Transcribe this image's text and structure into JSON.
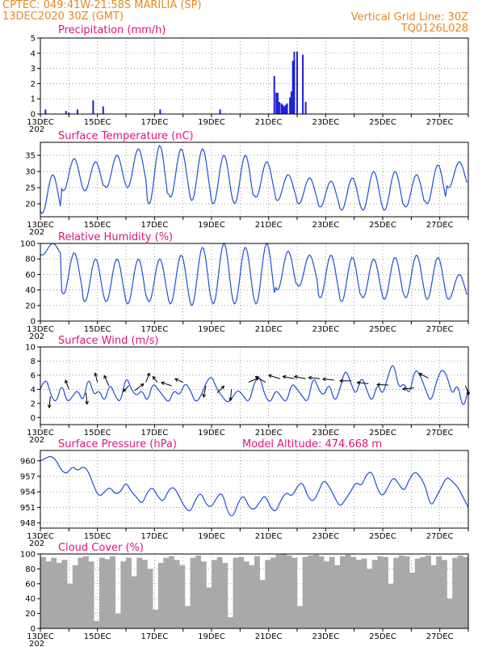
{
  "header": {
    "line1": "CPTEC:   049:41W-21:58S   MARILIA (SP)",
    "line2": "13DEC2020 30Z (GMT)",
    "right1": "Vertical Grid Line: 30Z",
    "right2": "TQ0126L028"
  },
  "x_axis": {
    "labels": [
      "13DEC",
      "15DEC",
      "17DEC",
      "19DEC",
      "21DEC",
      "23DEC",
      "25DEC",
      "27DEC"
    ],
    "year_stub": "202"
  },
  "chart_data": [
    {
      "id": "precip",
      "type": "bar",
      "title": "Precipitation (mm/h)",
      "ylim": [
        0,
        5
      ],
      "yticks": [
        0,
        1,
        2,
        3,
        4,
        5
      ],
      "color": "#1f1fd6",
      "x": [
        0.18,
        0.9,
        1.0,
        1.3,
        1.85,
        2.2,
        4.2,
        6.3,
        8.2,
        8.27,
        8.32,
        8.38,
        8.45,
        8.5,
        8.55,
        8.6,
        8.65,
        8.75,
        8.8,
        8.85,
        8.9,
        9.0,
        9.2,
        9.3
      ],
      "values": [
        0.3,
        0.2,
        0.1,
        0.3,
        0.9,
        0.5,
        0.3,
        0.3,
        2.5,
        1.4,
        1.4,
        0.8,
        0.7,
        0.6,
        0.5,
        0.6,
        0.7,
        1.1,
        1.5,
        3.5,
        4.1,
        4.1,
        3.9,
        0.8
      ]
    },
    {
      "id": "temp",
      "type": "line",
      "title": "Surface Temperature (nC)",
      "ylim": [
        16,
        39
      ],
      "yticks": [
        20,
        25,
        30,
        35
      ],
      "color": "#1f4fd6",
      "days": [
        [
          17,
          29
        ],
        [
          24,
          34
        ],
        [
          24,
          33
        ],
        [
          25,
          35
        ],
        [
          25,
          37
        ],
        [
          20,
          38
        ],
        [
          22,
          37
        ],
        [
          21,
          37
        ],
        [
          20,
          35
        ],
        [
          20,
          35
        ],
        [
          22,
          33
        ],
        [
          21,
          29
        ],
        [
          20,
          28
        ],
        [
          19,
          27
        ],
        [
          18,
          28
        ],
        [
          18,
          30
        ],
        [
          18,
          30
        ],
        [
          19,
          29
        ],
        [
          20,
          32
        ],
        [
          25,
          33
        ]
      ]
    },
    {
      "id": "rh",
      "type": "line",
      "title": "Relative Humidity (%)",
      "ylim": [
        0,
        100
      ],
      "yticks": [
        0,
        20,
        40,
        60,
        80,
        100
      ],
      "color": "#1f4fd6",
      "days": [
        [
          85,
          100
        ],
        [
          35,
          88
        ],
        [
          25,
          80
        ],
        [
          25,
          80
        ],
        [
          22,
          80
        ],
        [
          25,
          80
        ],
        [
          22,
          85
        ],
        [
          20,
          95
        ],
        [
          22,
          100
        ],
        [
          22,
          95
        ],
        [
          22,
          100
        ],
        [
          40,
          90
        ],
        [
          45,
          85
        ],
        [
          30,
          85
        ],
        [
          25,
          82
        ],
        [
          30,
          80
        ],
        [
          28,
          82
        ],
        [
          30,
          85
        ],
        [
          28,
          82
        ],
        [
          28,
          60
        ]
      ]
    },
    {
      "id": "wind",
      "type": "line",
      "title": "Surface Wind (m/s)",
      "ylim": [
        -1,
        10
      ],
      "yticks": [
        0,
        2,
        4,
        6,
        8,
        10
      ],
      "color": "#1f4fd6",
      "values": [
        4,
        6,
        3,
        2,
        5,
        2,
        3,
        4,
        2,
        6,
        3,
        4,
        2,
        5,
        3,
        2,
        6,
        4,
        3,
        4,
        2,
        5,
        4,
        3,
        2,
        4,
        3,
        5,
        4,
        2,
        3,
        5,
        6,
        4,
        3,
        2,
        3,
        4,
        3,
        2,
        5,
        6,
        3,
        2,
        4,
        3,
        2,
        5,
        4,
        3,
        2,
        6,
        4,
        3,
        5,
        2,
        4,
        7,
        5,
        3,
        6,
        4,
        2,
        5,
        3,
        6,
        8,
        4,
        5,
        3,
        7,
        6,
        4,
        2,
        5,
        7,
        6,
        3,
        5,
        1,
        4
      ],
      "arrows": [
        {
          "x": 0.35,
          "y": 3.0,
          "dx": -0.1,
          "dy": -1.0
        },
        {
          "x": 1.0,
          "y": 4.0,
          "dx": -0.3,
          "dy": 0.8
        },
        {
          "x": 1.6,
          "y": 3.5,
          "dx": 0.1,
          "dy": -1.0
        },
        {
          "x": 2.0,
          "y": 5.0,
          "dx": -0.2,
          "dy": 0.8
        },
        {
          "x": 2.4,
          "y": 4.5,
          "dx": -0.4,
          "dy": 0.9
        },
        {
          "x": 3.1,
          "y": 4.5,
          "dx": -0.5,
          "dy": -0.5
        },
        {
          "x": 3.3,
          "y": 3.8,
          "dx": 0.8,
          "dy": 0.6
        },
        {
          "x": 3.7,
          "y": 5.0,
          "dx": 0.3,
          "dy": 0.8
        },
        {
          "x": 4.1,
          "y": 5.0,
          "dx": -0.4,
          "dy": 0.5
        },
        {
          "x": 4.6,
          "y": 4.5,
          "dx": -0.9,
          "dy": 0.3
        },
        {
          "x": 5.0,
          "y": 5.0,
          "dx": -0.7,
          "dy": 0.3
        },
        {
          "x": 5.8,
          "y": 4.5,
          "dx": -0.2,
          "dy": -1.0
        },
        {
          "x": 6.2,
          "y": 3.5,
          "dx": 0.6,
          "dy": 0.6
        },
        {
          "x": 6.7,
          "y": 4.0,
          "dx": -0.1,
          "dy": -1.0
        },
        {
          "x": 7.3,
          "y": 5.0,
          "dx": 0.9,
          "dy": 0.4
        },
        {
          "x": 7.9,
          "y": 5.0,
          "dx": -0.9,
          "dy": 0.5
        },
        {
          "x": 8.4,
          "y": 5.5,
          "dx": -1.0,
          "dy": 0.3
        },
        {
          "x": 8.9,
          "y": 5.5,
          "dx": -1.0,
          "dy": 0.2
        },
        {
          "x": 9.3,
          "y": 5.5,
          "dx": -1.0,
          "dy": 0.2
        },
        {
          "x": 9.8,
          "y": 5.5,
          "dx": -1.0,
          "dy": 0.1
        },
        {
          "x": 10.3,
          "y": 5.3,
          "dx": -1.0,
          "dy": 0.1
        },
        {
          "x": 10.9,
          "y": 5.2,
          "dx": -1.0,
          "dy": 0.0
        },
        {
          "x": 11.5,
          "y": 4.8,
          "dx": -1.0,
          "dy": 0.1
        },
        {
          "x": 12.2,
          "y": 4.6,
          "dx": -1.0,
          "dy": 0.05
        },
        {
          "x": 13.1,
          "y": 4.2,
          "dx": -1.0,
          "dy": -0.1
        },
        {
          "x": 13.6,
          "y": 5.6,
          "dx": -0.8,
          "dy": 0.4
        },
        {
          "x": 14.9,
          "y": 4.5,
          "dx": 0.3,
          "dy": -0.8
        }
      ]
    },
    {
      "id": "pres",
      "type": "line",
      "title": "Surface Pressure (hPa)",
      "subtitle": "Model Altitude: 474.668 m",
      "ylim": [
        947,
        962
      ],
      "yticks": [
        948,
        951,
        954,
        957,
        960
      ],
      "color": "#1f4fd6",
      "values": [
        960,
        960.5,
        961,
        960,
        958,
        957.5,
        959,
        958,
        959,
        958,
        955,
        953,
        954,
        955,
        953.5,
        954,
        956,
        954,
        953,
        951.5,
        954,
        955,
        953,
        952,
        954.5,
        955,
        953,
        951,
        950,
        952.5,
        954,
        951.5,
        951,
        953,
        954,
        950,
        949,
        952,
        953.5,
        951,
        950.5,
        952,
        953.5,
        951,
        950,
        952.5,
        954,
        953,
        955,
        956,
        953,
        952,
        954,
        956.5,
        955,
        953,
        951,
        952.5,
        954,
        956,
        955,
        957.5,
        958,
        954.5,
        953,
        955,
        957,
        955.5,
        954,
        956.5,
        958,
        957,
        955,
        951,
        953,
        955,
        957,
        956,
        955,
        953,
        951
      ]
    },
    {
      "id": "cloud",
      "type": "area",
      "title": "Cloud Cover (%)",
      "ylim": [
        0,
        100
      ],
      "yticks": [
        0,
        20,
        40,
        60,
        80,
        100
      ],
      "color": "#a9a9a9",
      "values": [
        96,
        90,
        95,
        88,
        92,
        60,
        85,
        95,
        97,
        90,
        10,
        95,
        93,
        97,
        20,
        90,
        95,
        70,
        95,
        92,
        80,
        25,
        88,
        95,
        97,
        92,
        85,
        30,
        95,
        98,
        90,
        55,
        92,
        96,
        88,
        15,
        95,
        96,
        90,
        85,
        97,
        65,
        92,
        95,
        99,
        100,
        98,
        95,
        30,
        96,
        98,
        99,
        97,
        90,
        96,
        85,
        97,
        99,
        96,
        92,
        94,
        80,
        92,
        97,
        96,
        60,
        95,
        98,
        97,
        75,
        94,
        96,
        98,
        85,
        97,
        92,
        40,
        95,
        98,
        96
      ]
    }
  ]
}
